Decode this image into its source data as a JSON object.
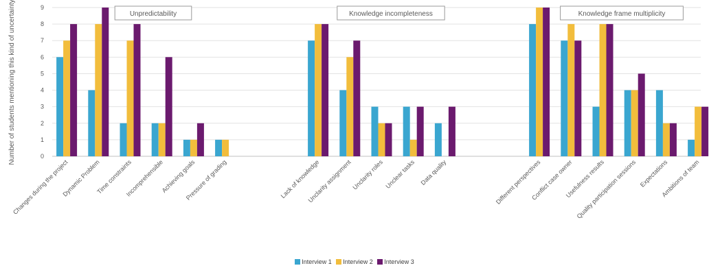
{
  "chart_data": {
    "type": "bar",
    "ylabel": "Number of students mentioning this kind of uncertainty",
    "ylim": [
      0,
      9
    ],
    "yticks": [
      0,
      1,
      2,
      3,
      4,
      5,
      6,
      7,
      8,
      9
    ],
    "grid": true,
    "legend_position": "bottom",
    "colors": [
      "#3aa6d0",
      "#f2bd3c",
      "#6b1a6e"
    ],
    "series_names": [
      "Interview 1",
      "Interview 2",
      "Interview 3"
    ],
    "groups": [
      {
        "title": "Unpredictability",
        "categories": [
          "Changes during the project",
          "Dynamic Problem",
          "Time constraints",
          "Incomprehensible",
          "Achieving goals",
          "Pressure of grading"
        ],
        "values": [
          [
            6,
            7,
            8
          ],
          [
            4,
            8,
            9
          ],
          [
            2,
            7,
            8
          ],
          [
            2,
            2,
            6
          ],
          [
            1,
            1,
            2
          ],
          [
            1,
            1,
            0
          ]
        ]
      },
      {
        "title": "Knowledge incompleteness",
        "categories": [
          "Lack of knowledge",
          "Unclarity assignment",
          "Unclarity roles",
          "Unclear tasks",
          "Data quality"
        ],
        "values": [
          [
            7,
            8,
            8
          ],
          [
            4,
            6,
            7
          ],
          [
            3,
            2,
            2
          ],
          [
            3,
            1,
            3
          ],
          [
            2,
            0,
            3
          ]
        ]
      },
      {
        "title": "Knowledge frame multiplicity",
        "categories": [
          "Different perspectives",
          "Conflict case owner",
          "Usefulness results",
          "Quality participation sessions",
          "Expectations",
          "Ambitions of team"
        ],
        "values": [
          [
            8,
            9,
            9
          ],
          [
            7,
            8,
            7
          ],
          [
            3,
            8,
            8
          ],
          [
            4,
            4,
            5
          ],
          [
            4,
            2,
            2
          ],
          [
            1,
            3,
            3
          ]
        ]
      }
    ]
  }
}
